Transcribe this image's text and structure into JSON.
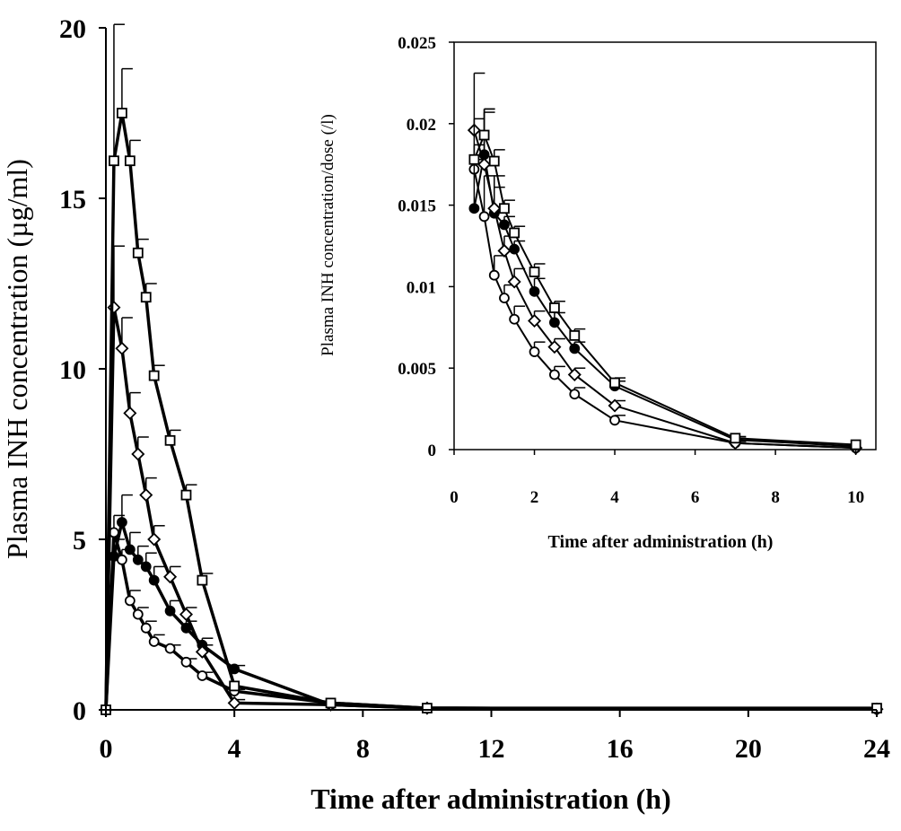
{
  "chart_data": [
    {
      "type": "line",
      "xlabel": "Time after administration (h)",
      "ylabel": "Plasma INH concentration (µg/ml)",
      "xlim": [
        0,
        24
      ],
      "ylim": [
        0,
        20
      ],
      "xticks": [
        "0",
        "4",
        "8",
        "12",
        "16",
        "20",
        "24"
      ],
      "yticks": [
        "0",
        "5",
        "10",
        "15",
        "20"
      ],
      "grid": false,
      "legend": "none",
      "series": [
        {
          "marker": "open-circle",
          "x": [
            0,
            0.25,
            0.5,
            0.75,
            1,
            1.25,
            1.5,
            2,
            2.5,
            3,
            4,
            7,
            10,
            24
          ],
          "y": [
            0,
            5.2,
            4.4,
            3.2,
            2.8,
            2.4,
            2.0,
            1.8,
            1.4,
            1.0,
            0.55,
            0.2,
            0.05,
            0.02
          ],
          "err": [
            0,
            0.5,
            0.3,
            0.3,
            0.2,
            0.2,
            0.2,
            0.1,
            0.1,
            0.1,
            0.05,
            0,
            0,
            0
          ]
        },
        {
          "marker": "filled-circle",
          "x": [
            0,
            0.25,
            0.5,
            0.75,
            1,
            1.25,
            1.5,
            2,
            2.5,
            3,
            4,
            7,
            10,
            24
          ],
          "y": [
            0,
            4.5,
            5.5,
            4.7,
            4.4,
            4.2,
            3.8,
            2.9,
            2.4,
            1.9,
            1.2,
            0.15,
            0.05,
            0.02
          ],
          "err": [
            0,
            0.5,
            0.8,
            0.5,
            0.4,
            0.4,
            0.4,
            0.3,
            0.2,
            0.2,
            0.1,
            0,
            0,
            0
          ]
        },
        {
          "marker": "open-diamond",
          "x": [
            0,
            0.25,
            0.5,
            0.75,
            1,
            1.25,
            1.5,
            2,
            2.5,
            3,
            4,
            7,
            10,
            24
          ],
          "y": [
            0,
            11.8,
            10.6,
            8.7,
            7.5,
            6.3,
            5.0,
            3.9,
            2.8,
            1.7,
            0.2,
            0.15,
            0.05,
            0.02
          ],
          "err": [
            0,
            1.8,
            0.9,
            0.6,
            0.5,
            0.5,
            0.4,
            0.3,
            0.2,
            0.2,
            0.1,
            0,
            0,
            0
          ]
        },
        {
          "marker": "open-square",
          "x": [
            0,
            0.25,
            0.5,
            0.75,
            1,
            1.25,
            1.5,
            2,
            2.5,
            3,
            4,
            7,
            10,
            24
          ],
          "y": [
            0,
            16.1,
            17.5,
            16.1,
            13.4,
            12.1,
            9.8,
            7.9,
            6.3,
            3.8,
            0.7,
            0.2,
            0.05,
            0.05
          ],
          "err": [
            0,
            4.0,
            1.3,
            0.6,
            0.4,
            0.4,
            0.3,
            0.3,
            0.3,
            0.2,
            0,
            0,
            0,
            0
          ]
        }
      ]
    },
    {
      "type": "line",
      "xlabel": "Time after administration (h)",
      "ylabel": "Plasma INH concentration/dose  (/l)",
      "xlim": [
        0,
        10.5
      ],
      "ylim": [
        0,
        0.025
      ],
      "xticks": [
        "0",
        "2",
        "4",
        "6",
        "8",
        "10"
      ],
      "yticks": [
        "0",
        "0.005",
        "0.01",
        "0.015",
        "0.02",
        "0.025"
      ],
      "grid": false,
      "legend": "none",
      "series": [
        {
          "marker": "open-circle",
          "x": [
            0.5,
            0.75,
            1,
            1.25,
            1.5,
            2,
            2.5,
            3,
            4,
            7,
            10
          ],
          "y": [
            0.0172,
            0.0143,
            0.0107,
            0.0093,
            0.008,
            0.006,
            0.0046,
            0.0034,
            0.0018,
            0.0004,
            0.0001
          ],
          "err": [
            0.0015,
            0.0025,
            0.0012,
            0.0008,
            0.0008,
            0.0006,
            0.0005,
            0.0004,
            0.0003,
            0.0001,
            0
          ]
        },
        {
          "marker": "filled-circle",
          "x": [
            0.5,
            0.75,
            1,
            1.25,
            1.5,
            2,
            2.5,
            3,
            4,
            7,
            10
          ],
          "y": [
            0.0148,
            0.0181,
            0.0145,
            0.0138,
            0.0123,
            0.0097,
            0.0078,
            0.0062,
            0.0039,
            0.0006,
            0.0002
          ],
          "err": [
            0.003,
            0.0028,
            0.0023,
            0.0005,
            0.0005,
            0.0008,
            0.0006,
            0.0004,
            0.0003,
            0.0001,
            0
          ]
        },
        {
          "marker": "open-diamond",
          "x": [
            0.5,
            0.75,
            1,
            1.25,
            1.5,
            2,
            2.5,
            3,
            4,
            7,
            10
          ],
          "y": [
            0.0196,
            0.0175,
            0.0148,
            0.0122,
            0.0103,
            0.0079,
            0.0063,
            0.0046,
            0.0027,
            0.0004,
            0.0001
          ],
          "err": [
            0.0035,
            0.0032,
            0.0013,
            0.0009,
            0.0008,
            0.0006,
            0.0005,
            0.0004,
            0.0003,
            0.0001,
            0
          ]
        },
        {
          "marker": "open-square",
          "x": [
            0.5,
            0.75,
            1,
            1.25,
            1.5,
            2,
            2.5,
            3,
            4,
            7,
            10
          ],
          "y": [
            0.0178,
            0.0193,
            0.0177,
            0.0148,
            0.0133,
            0.0109,
            0.0087,
            0.007,
            0.0041,
            0.0007,
            0.0003
          ],
          "err": [
            0.0025,
            0.0016,
            0.0007,
            0.0005,
            0.0004,
            0.0005,
            0.0004,
            0.0004,
            0.0003,
            0.0001,
            0
          ]
        }
      ]
    }
  ]
}
